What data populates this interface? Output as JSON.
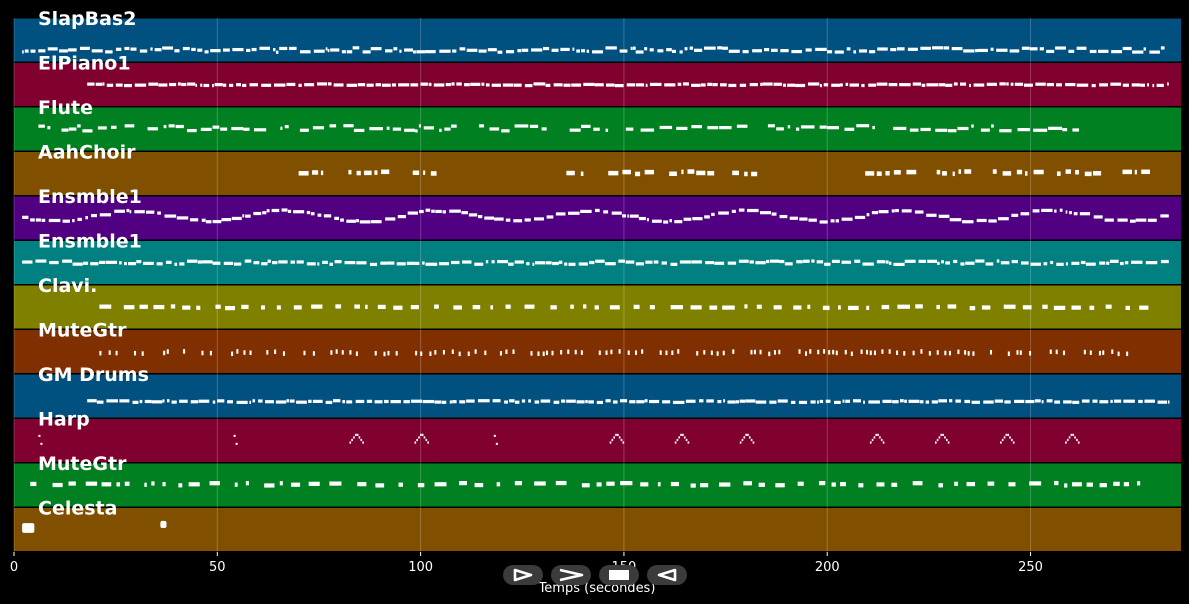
{
  "chart_data": {
    "type": "piano-roll",
    "xlabel": "Temps (secondes)",
    "xlim": [
      0,
      287
    ],
    "xticks": [
      0,
      50,
      100,
      150,
      200,
      250
    ],
    "grid": true,
    "tracks": [
      {
        "name": "SlapBas2",
        "color": "#005080",
        "start": 2,
        "end": 283,
        "pattern": "dense-line",
        "y": 0.72,
        "amp": 0.05
      },
      {
        "name": "ElPiano1",
        "color": "#800030",
        "start": 18,
        "end": 284,
        "pattern": "dense-line",
        "y": 0.5,
        "amp": 0.02
      },
      {
        "name": "Flute",
        "color": "#008020",
        "start": 6,
        "end": 262,
        "pattern": "sparse-line",
        "y": 0.48,
        "amp": 0.06
      },
      {
        "name": "AahChoir",
        "color": "#805000",
        "start": 70,
        "end": 278,
        "pattern": "phrases",
        "y": 0.48,
        "amp": 0.03,
        "gaps": [
          [
            103,
            135
          ],
          [
            182,
            202
          ]
        ]
      },
      {
        "name": "Ensmble1",
        "color": "#500080",
        "start": 2,
        "end": 284,
        "pattern": "wavy",
        "y": 0.45,
        "amp": 0.12
      },
      {
        "name": "Ensmble1",
        "color": "#008080",
        "start": 2,
        "end": 284,
        "pattern": "dense-line",
        "y": 0.5,
        "amp": 0.04
      },
      {
        "name": "Clavi.",
        "color": "#808000",
        "start": 21,
        "end": 280,
        "pattern": "dashes",
        "y": 0.5,
        "amp": 0.02
      },
      {
        "name": "MuteGtr",
        "color": "#803000",
        "start": 21,
        "end": 278,
        "pattern": "dots",
        "y": 0.52,
        "amp": 0.03
      },
      {
        "name": "GM Drums",
        "color": "#005080",
        "start": 18,
        "end": 284,
        "pattern": "dense-line",
        "y": 0.62,
        "amp": 0.02
      },
      {
        "name": "Harp",
        "color": "#800030",
        "start": 5,
        "end": 262,
        "pattern": "arpeggio",
        "y": 0.48,
        "amp": 0.2,
        "events": [
          6,
          54,
          84,
          100,
          118,
          148,
          164,
          180,
          212,
          228,
          244,
          260
        ]
      },
      {
        "name": "MuteGtr",
        "color": "#008020",
        "start": 4,
        "end": 280,
        "pattern": "dashes",
        "y": 0.48,
        "amp": 0.03
      },
      {
        "name": "Celesta",
        "color": "#805000",
        "start": 2,
        "end": 38,
        "pattern": "blocks",
        "y": 0.45,
        "amp": 0.05,
        "events": [
          2,
          36
        ]
      }
    ]
  },
  "controls": [
    {
      "name": "play-button",
      "icon": "play-icon"
    },
    {
      "name": "forward-button",
      "icon": "fast-forward-icon"
    },
    {
      "name": "stop-button",
      "icon": "stop-icon"
    },
    {
      "name": "rewind-button",
      "icon": "rewind-icon"
    }
  ]
}
